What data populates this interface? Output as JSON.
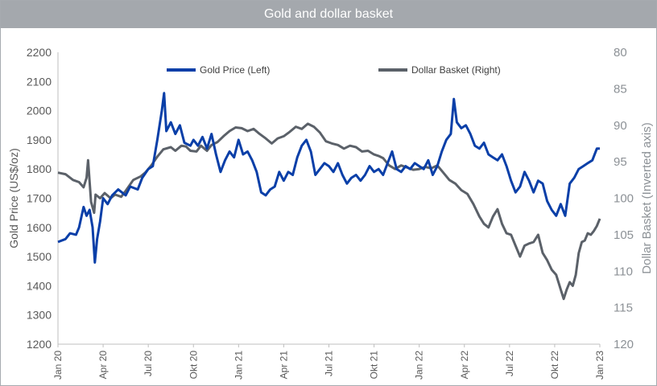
{
  "header": {
    "title": "Gold and dollar basket"
  },
  "colors": {
    "gold": "#0a3fa8",
    "dollar": "#5b6169",
    "axis": "#595959",
    "right_axis": "#8c9196",
    "title_bg": "#a4a8ad"
  },
  "chart_data": {
    "type": "line",
    "title": "Gold and dollar basket",
    "ylabel": "Gold Price (US$/oz)",
    "y2label": "Dollar Basket (Inverted axis)",
    "ylim": [
      1200,
      2200
    ],
    "y2lim": [
      80,
      120
    ],
    "y2_inverted": true,
    "yticks": [
      "2200",
      "2100",
      "2000",
      "1900",
      "1800",
      "1700",
      "1600",
      "1500",
      "1400",
      "1300",
      "1200"
    ],
    "y2ticks": [
      "80",
      "85",
      "90",
      "95",
      "100",
      "105",
      "110",
      "115",
      "120"
    ],
    "xlim": [
      0,
      36
    ],
    "xticks": [
      {
        "label": "Jan 20",
        "x": 0
      },
      {
        "label": "Apr 20",
        "x": 3
      },
      {
        "label": "Jul 20",
        "x": 6
      },
      {
        "label": "Okt 20",
        "x": 9
      },
      {
        "label": "Jan 21",
        "x": 12
      },
      {
        "label": "Apr 21",
        "x": 15
      },
      {
        "label": "Jul 21",
        "x": 18
      },
      {
        "label": "Okt 21",
        "x": 21
      },
      {
        "label": "Jan 22",
        "x": 24
      },
      {
        "label": "Apr 22",
        "x": 27
      },
      {
        "label": "Jul 22",
        "x": 30
      },
      {
        "label": "Okt 22",
        "x": 33
      },
      {
        "label": "Jan 23",
        "x": 36
      }
    ],
    "legend": [
      "Gold Price (Left)",
      "Dollar Basket (Right)"
    ],
    "series": [
      {
        "name": "Gold Price (Left)",
        "axis": "left",
        "points": [
          [
            0,
            1550
          ],
          [
            0.5,
            1560
          ],
          [
            0.8,
            1580
          ],
          [
            1.2,
            1575
          ],
          [
            1.4,
            1600
          ],
          [
            1.7,
            1670
          ],
          [
            1.9,
            1640
          ],
          [
            2.1,
            1660
          ],
          [
            2.3,
            1600
          ],
          [
            2.45,
            1480
          ],
          [
            2.6,
            1560
          ],
          [
            2.8,
            1620
          ],
          [
            3.0,
            1700
          ],
          [
            3.3,
            1680
          ],
          [
            3.6,
            1710
          ],
          [
            4.0,
            1730
          ],
          [
            4.5,
            1710
          ],
          [
            4.8,
            1740
          ],
          [
            5.3,
            1730
          ],
          [
            5.6,
            1770
          ],
          [
            6.0,
            1800
          ],
          [
            6.3,
            1810
          ],
          [
            6.6,
            1900
          ],
          [
            6.9,
            2000
          ],
          [
            7.05,
            2060
          ],
          [
            7.2,
            1930
          ],
          [
            7.5,
            1960
          ],
          [
            7.8,
            1920
          ],
          [
            8.1,
            1950
          ],
          [
            8.4,
            1890
          ],
          [
            8.8,
            1880
          ],
          [
            9.0,
            1900
          ],
          [
            9.3,
            1880
          ],
          [
            9.6,
            1910
          ],
          [
            9.9,
            1870
          ],
          [
            10.2,
            1920
          ],
          [
            10.5,
            1850
          ],
          [
            10.8,
            1790
          ],
          [
            11.1,
            1830
          ],
          [
            11.4,
            1860
          ],
          [
            11.7,
            1840
          ],
          [
            12.0,
            1900
          ],
          [
            12.3,
            1850
          ],
          [
            12.6,
            1860
          ],
          [
            12.9,
            1830
          ],
          [
            13.2,
            1790
          ],
          [
            13.5,
            1720
          ],
          [
            13.8,
            1710
          ],
          [
            14.1,
            1730
          ],
          [
            14.4,
            1740
          ],
          [
            14.7,
            1790
          ],
          [
            15.0,
            1760
          ],
          [
            15.3,
            1790
          ],
          [
            15.6,
            1780
          ],
          [
            15.9,
            1840
          ],
          [
            16.2,
            1880
          ],
          [
            16.5,
            1900
          ],
          [
            16.8,
            1860
          ],
          [
            17.1,
            1780
          ],
          [
            17.4,
            1800
          ],
          [
            17.7,
            1820
          ],
          [
            18.0,
            1810
          ],
          [
            18.3,
            1790
          ],
          [
            18.6,
            1820
          ],
          [
            18.9,
            1780
          ],
          [
            19.2,
            1750
          ],
          [
            19.5,
            1770
          ],
          [
            19.8,
            1780
          ],
          [
            20.1,
            1760
          ],
          [
            20.4,
            1780
          ],
          [
            20.7,
            1810
          ],
          [
            21.0,
            1790
          ],
          [
            21.3,
            1800
          ],
          [
            21.6,
            1780
          ],
          [
            21.9,
            1820
          ],
          [
            22.2,
            1860
          ],
          [
            22.5,
            1800
          ],
          [
            22.8,
            1790
          ],
          [
            23.1,
            1810
          ],
          [
            23.4,
            1800
          ],
          [
            23.7,
            1820
          ],
          [
            24.0,
            1810
          ],
          [
            24.3,
            1800
          ],
          [
            24.6,
            1830
          ],
          [
            24.9,
            1780
          ],
          [
            25.2,
            1810
          ],
          [
            25.5,
            1860
          ],
          [
            25.8,
            1900
          ],
          [
            26.1,
            1920
          ],
          [
            26.3,
            2040
          ],
          [
            26.5,
            1960
          ],
          [
            26.8,
            1940
          ],
          [
            27.1,
            1950
          ],
          [
            27.4,
            1920
          ],
          [
            27.7,
            1880
          ],
          [
            28.0,
            1870
          ],
          [
            28.3,
            1890
          ],
          [
            28.6,
            1850
          ],
          [
            28.9,
            1840
          ],
          [
            29.2,
            1830
          ],
          [
            29.5,
            1850
          ],
          [
            29.8,
            1810
          ],
          [
            30.1,
            1760
          ],
          [
            30.4,
            1720
          ],
          [
            30.7,
            1740
          ],
          [
            31.0,
            1790
          ],
          [
            31.3,
            1760
          ],
          [
            31.6,
            1720
          ],
          [
            31.9,
            1760
          ],
          [
            32.2,
            1750
          ],
          [
            32.5,
            1690
          ],
          [
            32.8,
            1660
          ],
          [
            33.1,
            1640
          ],
          [
            33.4,
            1680
          ],
          [
            33.7,
            1640
          ],
          [
            34.0,
            1750
          ],
          [
            34.3,
            1770
          ],
          [
            34.6,
            1800
          ],
          [
            34.9,
            1810
          ],
          [
            35.2,
            1820
          ],
          [
            35.5,
            1830
          ],
          [
            35.8,
            1870
          ],
          [
            36.0,
            1870
          ]
        ]
      },
      {
        "name": "Dollar Basket (Right)",
        "axis": "right",
        "points": [
          [
            0,
            96.5
          ],
          [
            0.5,
            96.7
          ],
          [
            1.0,
            97.5
          ],
          [
            1.4,
            97.8
          ],
          [
            1.7,
            98.5
          ],
          [
            1.9,
            97.2
          ],
          [
            2.0,
            94.8
          ],
          [
            2.2,
            100.5
          ],
          [
            2.4,
            102.0
          ],
          [
            2.5,
            99.5
          ],
          [
            2.8,
            100.0
          ],
          [
            3.1,
            99.3
          ],
          [
            3.5,
            100.0
          ],
          [
            3.8,
            99.5
          ],
          [
            4.2,
            99.8
          ],
          [
            4.5,
            99.0
          ],
          [
            5.0,
            97.5
          ],
          [
            5.5,
            97.0
          ],
          [
            5.8,
            96.5
          ],
          [
            6.2,
            95.5
          ],
          [
            6.6,
            94.3
          ],
          [
            7.0,
            93.3
          ],
          [
            7.5,
            93.0
          ],
          [
            7.8,
            93.5
          ],
          [
            8.2,
            92.8
          ],
          [
            8.5,
            92.9
          ],
          [
            8.8,
            93.5
          ],
          [
            9.2,
            93.6
          ],
          [
            9.5,
            92.8
          ],
          [
            9.9,
            93.5
          ],
          [
            10.2,
            92.7
          ],
          [
            10.6,
            92.3
          ],
          [
            11.0,
            91.5
          ],
          [
            11.4,
            90.8
          ],
          [
            11.8,
            90.3
          ],
          [
            12.2,
            90.4
          ],
          [
            12.6,
            90.8
          ],
          [
            13.0,
            90.5
          ],
          [
            13.4,
            91.2
          ],
          [
            13.8,
            91.8
          ],
          [
            14.2,
            92.5
          ],
          [
            14.6,
            91.8
          ],
          [
            15.0,
            91.5
          ],
          [
            15.4,
            90.9
          ],
          [
            15.8,
            90.2
          ],
          [
            16.2,
            90.5
          ],
          [
            16.6,
            89.8
          ],
          [
            17.0,
            90.2
          ],
          [
            17.4,
            91.0
          ],
          [
            17.8,
            92.2
          ],
          [
            18.2,
            92.5
          ],
          [
            18.6,
            92.7
          ],
          [
            19.0,
            93.2
          ],
          [
            19.4,
            92.8
          ],
          [
            19.8,
            93.0
          ],
          [
            20.2,
            93.6
          ],
          [
            20.6,
            93.5
          ],
          [
            21.0,
            94.0
          ],
          [
            21.3,
            94.2
          ],
          [
            21.6,
            94.5
          ],
          [
            22.0,
            95.5
          ],
          [
            22.4,
            96.0
          ],
          [
            22.8,
            95.5
          ],
          [
            23.2,
            95.8
          ],
          [
            23.6,
            96.1
          ],
          [
            24.0,
            96.0
          ],
          [
            24.4,
            95.7
          ],
          [
            24.8,
            95.9
          ],
          [
            25.2,
            95.5
          ],
          [
            25.6,
            96.5
          ],
          [
            26.0,
            97.5
          ],
          [
            26.4,
            98.0
          ],
          [
            26.8,
            98.9
          ],
          [
            27.2,
            99.4
          ],
          [
            27.6,
            100.8
          ],
          [
            28.0,
            102.5
          ],
          [
            28.3,
            103.5
          ],
          [
            28.6,
            104.0
          ],
          [
            28.9,
            102.5
          ],
          [
            29.2,
            101.5
          ],
          [
            29.5,
            103.5
          ],
          [
            29.8,
            104.8
          ],
          [
            30.1,
            105.0
          ],
          [
            30.4,
            106.5
          ],
          [
            30.7,
            108.0
          ],
          [
            31.0,
            106.5
          ],
          [
            31.3,
            106.2
          ],
          [
            31.6,
            106.0
          ],
          [
            31.9,
            105.0
          ],
          [
            32.2,
            107.5
          ],
          [
            32.5,
            108.5
          ],
          [
            32.8,
            109.8
          ],
          [
            33.1,
            110.5
          ],
          [
            33.4,
            112.5
          ],
          [
            33.6,
            113.8
          ],
          [
            33.8,
            112.5
          ],
          [
            34.0,
            111.5
          ],
          [
            34.2,
            112.0
          ],
          [
            34.4,
            110.5
          ],
          [
            34.6,
            107.5
          ],
          [
            34.8,
            106.0
          ],
          [
            35.0,
            105.8
          ],
          [
            35.2,
            104.8
          ],
          [
            35.4,
            105.0
          ],
          [
            35.6,
            104.5
          ],
          [
            35.8,
            103.8
          ],
          [
            36.0,
            102.8
          ]
        ]
      }
    ]
  }
}
